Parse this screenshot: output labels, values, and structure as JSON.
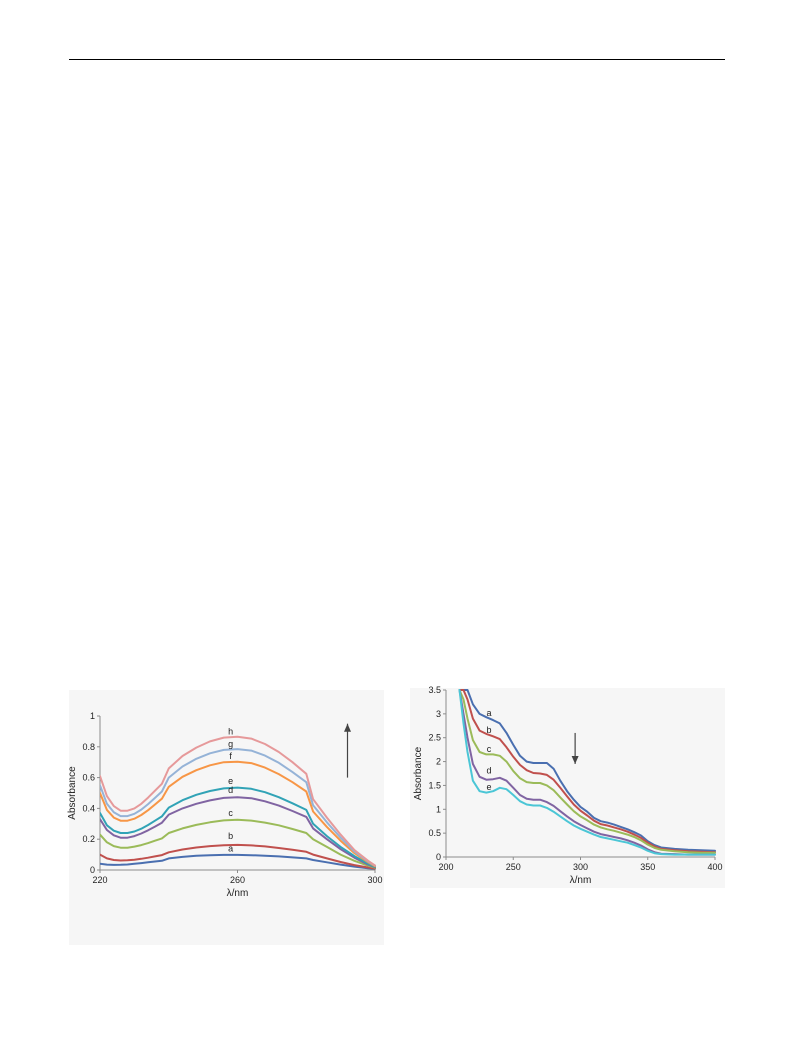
{
  "page": {
    "has_top_rule": true
  },
  "chart_data": [
    {
      "type": "line",
      "id": "left",
      "xlabel": "λ/nm",
      "ylabel": "Absorbance",
      "xlim": [
        220,
        300
      ],
      "ylim": [
        0,
        1
      ],
      "xticks": [
        220,
        260,
        300
      ],
      "xtick_labels": [
        "220",
        "260",
        "300"
      ],
      "yticks": [
        0,
        0.2,
        0.4,
        0.6,
        0.8,
        1
      ],
      "ytick_labels": [
        "0",
        "0.2",
        "0.4",
        "0.6",
        "0.8",
        "1"
      ],
      "grid": false,
      "arrow": {
        "direction": "up",
        "x": 292,
        "y_from": 0.6,
        "y_to": 0.95
      },
      "x": [
        220,
        222,
        224,
        226,
        228,
        230,
        232,
        234,
        236,
        238,
        240,
        244,
        248,
        252,
        256,
        260,
        264,
        268,
        272,
        276,
        280,
        282,
        286,
        290,
        294,
        298,
        300
      ],
      "series": [
        {
          "name": "a",
          "color": "#4a6fb0",
          "label_x": 258,
          "label_y": 0.12,
          "values": [
            0.04,
            0.035,
            0.033,
            0.034,
            0.036,
            0.04,
            0.045,
            0.05,
            0.055,
            0.06,
            0.075,
            0.085,
            0.092,
            0.096,
            0.098,
            0.098,
            0.096,
            0.093,
            0.088,
            0.082,
            0.075,
            0.065,
            0.05,
            0.035,
            0.022,
            0.012,
            0.008
          ]
        },
        {
          "name": "b",
          "color": "#c0504d",
          "label_x": 258,
          "label_y": 0.2,
          "values": [
            0.1,
            0.075,
            0.065,
            0.062,
            0.063,
            0.067,
            0.073,
            0.08,
            0.088,
            0.097,
            0.115,
            0.133,
            0.146,
            0.155,
            0.161,
            0.163,
            0.16,
            0.153,
            0.143,
            0.131,
            0.118,
            0.1,
            0.075,
            0.052,
            0.032,
            0.016,
            0.01
          ]
        },
        {
          "name": "c",
          "color": "#9bbb59",
          "label_x": 258,
          "label_y": 0.35,
          "values": [
            0.23,
            0.18,
            0.155,
            0.145,
            0.145,
            0.152,
            0.162,
            0.175,
            0.19,
            0.205,
            0.24,
            0.27,
            0.293,
            0.31,
            0.322,
            0.326,
            0.321,
            0.308,
            0.29,
            0.266,
            0.24,
            0.2,
            0.15,
            0.1,
            0.06,
            0.028,
            0.015
          ]
        },
        {
          "name": "d",
          "color": "#8064a2",
          "label_x": 258,
          "label_y": 0.5,
          "values": [
            0.33,
            0.26,
            0.225,
            0.21,
            0.21,
            0.22,
            0.237,
            0.258,
            0.282,
            0.307,
            0.36,
            0.4,
            0.43,
            0.452,
            0.468,
            0.473,
            0.466,
            0.446,
            0.418,
            0.383,
            0.345,
            0.27,
            0.2,
            0.135,
            0.08,
            0.035,
            0.018
          ]
        },
        {
          "name": "e",
          "color": "#31a3b6",
          "label_x": 258,
          "label_y": 0.56,
          "values": [
            0.37,
            0.29,
            0.255,
            0.24,
            0.24,
            0.25,
            0.268,
            0.292,
            0.32,
            0.348,
            0.405,
            0.453,
            0.488,
            0.513,
            0.53,
            0.535,
            0.527,
            0.505,
            0.473,
            0.433,
            0.39,
            0.3,
            0.22,
            0.15,
            0.09,
            0.04,
            0.02
          ]
        },
        {
          "name": "f",
          "color": "#f79646",
          "label_x": 258,
          "label_y": 0.72,
          "values": [
            0.5,
            0.39,
            0.34,
            0.32,
            0.32,
            0.333,
            0.357,
            0.388,
            0.425,
            0.463,
            0.54,
            0.605,
            0.648,
            0.68,
            0.7,
            0.703,
            0.694,
            0.665,
            0.623,
            0.57,
            0.51,
            0.38,
            0.28,
            0.19,
            0.11,
            0.05,
            0.025
          ]
        },
        {
          "name": "g",
          "color": "#95b3d7",
          "label_x": 258,
          "label_y": 0.8,
          "values": [
            0.55,
            0.43,
            0.375,
            0.35,
            0.35,
            0.365,
            0.392,
            0.428,
            0.468,
            0.51,
            0.6,
            0.672,
            0.722,
            0.758,
            0.78,
            0.785,
            0.775,
            0.743,
            0.696,
            0.636,
            0.57,
            0.42,
            0.31,
            0.21,
            0.12,
            0.055,
            0.028
          ]
        },
        {
          "name": "h",
          "color": "#e6999a",
          "label_x": 258,
          "label_y": 0.88,
          "values": [
            0.61,
            0.48,
            0.415,
            0.385,
            0.385,
            0.4,
            0.43,
            0.47,
            0.515,
            0.56,
            0.66,
            0.74,
            0.795,
            0.835,
            0.86,
            0.865,
            0.853,
            0.818,
            0.766,
            0.7,
            0.625,
            0.46,
            0.34,
            0.23,
            0.13,
            0.06,
            0.03
          ]
        }
      ]
    },
    {
      "type": "line",
      "id": "right",
      "xlabel": "λ/nm",
      "ylabel": "Absorbance",
      "xlim": [
        200,
        400
      ],
      "ylim": [
        0,
        3.5
      ],
      "xticks": [
        200,
        250,
        300,
        350,
        400
      ],
      "xtick_labels": [
        "200",
        "250",
        "300",
        "350",
        "400"
      ],
      "yticks": [
        0,
        0.5,
        1,
        1.5,
        2,
        2.5,
        3,
        3.5
      ],
      "ytick_labels": [
        "0",
        "0.5",
        "1",
        "1.5",
        "2",
        "2.5",
        "3",
        "3.5"
      ],
      "grid": false,
      "arrow": {
        "direction": "down",
        "x": 296,
        "y_from": 2.6,
        "y_to": 1.95
      },
      "x": [
        210,
        213,
        216,
        220,
        225,
        230,
        235,
        240,
        245,
        250,
        255,
        260,
        265,
        270,
        275,
        280,
        285,
        290,
        295,
        300,
        305,
        310,
        315,
        320,
        325,
        330,
        335,
        340,
        345,
        350,
        355,
        360,
        370,
        380,
        390,
        400
      ],
      "series": [
        {
          "name": "a",
          "color": "#4a6fb0",
          "label_x": 232,
          "label_y": 2.95,
          "values": [
            3.5,
            3.5,
            3.5,
            3.2,
            3.0,
            2.93,
            2.87,
            2.8,
            2.6,
            2.35,
            2.12,
            2.0,
            1.97,
            1.97,
            1.97,
            1.85,
            1.6,
            1.38,
            1.2,
            1.05,
            0.95,
            0.82,
            0.75,
            0.72,
            0.68,
            0.63,
            0.58,
            0.52,
            0.45,
            0.33,
            0.25,
            0.2,
            0.17,
            0.15,
            0.14,
            0.13
          ]
        },
        {
          "name": "b",
          "color": "#c0504d",
          "label_x": 232,
          "label_y": 2.6,
          "values": [
            3.5,
            3.5,
            3.3,
            2.9,
            2.65,
            2.58,
            2.53,
            2.47,
            2.3,
            2.1,
            1.93,
            1.82,
            1.76,
            1.75,
            1.72,
            1.62,
            1.45,
            1.27,
            1.1,
            0.97,
            0.87,
            0.76,
            0.69,
            0.66,
            0.62,
            0.58,
            0.53,
            0.47,
            0.4,
            0.3,
            0.22,
            0.17,
            0.14,
            0.12,
            0.11,
            0.1
          ]
        },
        {
          "name": "c",
          "color": "#9bbb59",
          "label_x": 232,
          "label_y": 2.2,
          "values": [
            3.5,
            3.3,
            2.9,
            2.45,
            2.2,
            2.15,
            2.15,
            2.12,
            2.0,
            1.8,
            1.65,
            1.57,
            1.55,
            1.55,
            1.5,
            1.4,
            1.25,
            1.1,
            0.96,
            0.85,
            0.77,
            0.68,
            0.62,
            0.58,
            0.55,
            0.51,
            0.47,
            0.42,
            0.35,
            0.26,
            0.19,
            0.15,
            0.12,
            0.1,
            0.09,
            0.09
          ]
        },
        {
          "name": "d",
          "color": "#8064a2",
          "label_x": 232,
          "label_y": 1.75,
          "values": [
            3.5,
            3.0,
            2.5,
            1.95,
            1.68,
            1.62,
            1.63,
            1.66,
            1.6,
            1.45,
            1.3,
            1.22,
            1.2,
            1.2,
            1.15,
            1.07,
            0.96,
            0.85,
            0.75,
            0.67,
            0.6,
            0.53,
            0.48,
            0.45,
            0.42,
            0.39,
            0.35,
            0.3,
            0.24,
            0.16,
            0.1,
            0.07,
            0.06,
            0.05,
            0.05,
            0.05
          ]
        },
        {
          "name": "e",
          "color": "#4bc6d6",
          "label_x": 232,
          "label_y": 1.4,
          "values": [
            3.5,
            2.8,
            2.2,
            1.6,
            1.38,
            1.35,
            1.38,
            1.45,
            1.42,
            1.3,
            1.17,
            1.1,
            1.08,
            1.08,
            1.03,
            0.95,
            0.85,
            0.75,
            0.66,
            0.59,
            0.53,
            0.47,
            0.42,
            0.39,
            0.36,
            0.33,
            0.3,
            0.25,
            0.2,
            0.13,
            0.08,
            0.06,
            0.05,
            0.05,
            0.05,
            0.05
          ]
        }
      ]
    }
  ]
}
